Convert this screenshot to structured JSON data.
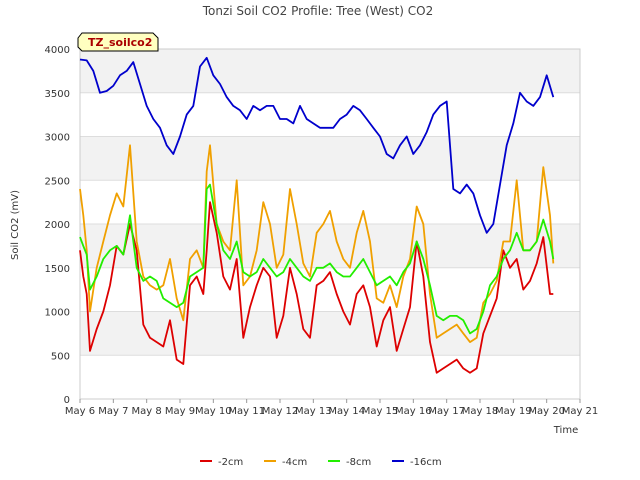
{
  "chart_data": {
    "type": "line",
    "title": "Tonzi Soil CO2 Profile: Tree (West) CO2",
    "xlabel": "Time",
    "ylabel": "Soil CO2 (mV)",
    "ylim": [
      0,
      4000
    ],
    "yticks": [
      0,
      500,
      1000,
      1500,
      2000,
      2500,
      3000,
      3500,
      4000
    ],
    "xlim": [
      6,
      21
    ],
    "xticks": [
      {
        "x": 6,
        "label": "May 6"
      },
      {
        "x": 7,
        "label": "May 7"
      },
      {
        "x": 8,
        "label": "May 8"
      },
      {
        "x": 9,
        "label": "May 9"
      },
      {
        "x": 10,
        "label": "May 10"
      },
      {
        "x": 11,
        "label": "May 11"
      },
      {
        "x": 12,
        "label": "May 12"
      },
      {
        "x": 13,
        "label": "May 13"
      },
      {
        "x": 14,
        "label": "May 14"
      },
      {
        "x": 15,
        "label": "May 15"
      },
      {
        "x": 16,
        "label": "May 16"
      },
      {
        "x": 17,
        "label": "May 17"
      },
      {
        "x": 18,
        "label": "May 18"
      },
      {
        "x": 19,
        "label": "May 19"
      },
      {
        "x": 20,
        "label": "May 20"
      },
      {
        "x": 21,
        "label": "May 21"
      }
    ],
    "grid": true,
    "badge": "TZ_soilco2",
    "legend_position": "bottom-center",
    "series": [
      {
        "name": "-2cm",
        "color": "#dd0000",
        "x": [
          6.0,
          6.1,
          6.2,
          6.3,
          6.5,
          6.7,
          6.9,
          7.1,
          7.3,
          7.5,
          7.7,
          7.9,
          8.1,
          8.3,
          8.5,
          8.7,
          8.9,
          9.1,
          9.3,
          9.5,
          9.7,
          9.8,
          9.9,
          10.1,
          10.3,
          10.5,
          10.7,
          10.9,
          11.1,
          11.3,
          11.5,
          11.7,
          11.9,
          12.1,
          12.3,
          12.5,
          12.7,
          12.9,
          13.1,
          13.3,
          13.5,
          13.7,
          13.9,
          14.1,
          14.3,
          14.5,
          14.7,
          14.9,
          15.1,
          15.3,
          15.5,
          15.7,
          15.9,
          16.1,
          16.3,
          16.5,
          16.7,
          16.9,
          17.1,
          17.3,
          17.5,
          17.7,
          17.9,
          18.1,
          18.3,
          18.5,
          18.7,
          18.9,
          19.1,
          19.3,
          19.5,
          19.7,
          19.9,
          20.1,
          20.2
        ],
        "values": [
          1700,
          1400,
          1200,
          550,
          800,
          1000,
          1300,
          1750,
          1650,
          2000,
          1700,
          850,
          700,
          650,
          600,
          900,
          450,
          400,
          1300,
          1400,
          1200,
          1700,
          2250,
          1900,
          1400,
          1250,
          1600,
          700,
          1050,
          1300,
          1500,
          1400,
          700,
          950,
          1500,
          1200,
          800,
          700,
          1300,
          1350,
          1450,
          1200,
          1000,
          850,
          1200,
          1300,
          1050,
          600,
          900,
          1050,
          550,
          800,
          1050,
          1800,
          1400,
          650,
          300,
          350,
          400,
          450,
          350,
          300,
          350,
          750,
          950,
          1150,
          1700,
          1500,
          1600,
          1250,
          1350,
          1550,
          1850,
          1200,
          1200
        ]
      },
      {
        "name": "-4cm",
        "color": "#f0a000",
        "x": [
          6.0,
          6.1,
          6.2,
          6.3,
          6.5,
          6.7,
          6.9,
          7.1,
          7.3,
          7.5,
          7.7,
          7.9,
          8.1,
          8.3,
          8.5,
          8.7,
          8.9,
          9.1,
          9.3,
          9.5,
          9.7,
          9.8,
          9.9,
          10.1,
          10.3,
          10.5,
          10.7,
          10.9,
          11.1,
          11.3,
          11.5,
          11.7,
          11.9,
          12.1,
          12.3,
          12.5,
          12.7,
          12.9,
          13.1,
          13.3,
          13.5,
          13.7,
          13.9,
          14.1,
          14.3,
          14.5,
          14.7,
          14.9,
          15.1,
          15.3,
          15.5,
          15.7,
          15.9,
          16.1,
          16.3,
          16.5,
          16.7,
          16.9,
          17.1,
          17.3,
          17.5,
          17.7,
          17.9,
          18.1,
          18.3,
          18.5,
          18.7,
          18.9,
          19.1,
          19.3,
          19.5,
          19.7,
          19.9,
          20.1,
          20.2
        ],
        "values": [
          2400,
          2100,
          1700,
          1000,
          1500,
          1800,
          2100,
          2350,
          2200,
          2900,
          1800,
          1400,
          1300,
          1250,
          1300,
          1600,
          1150,
          900,
          1600,
          1700,
          1500,
          2600,
          2900,
          2000,
          1800,
          1700,
          2500,
          1300,
          1400,
          1700,
          2250,
          2000,
          1500,
          1650,
          2400,
          2000,
          1550,
          1400,
          1900,
          2000,
          2150,
          1800,
          1600,
          1500,
          1900,
          2150,
          1800,
          1150,
          1100,
          1300,
          1050,
          1400,
          1600,
          2200,
          2000,
          1200,
          700,
          750,
          800,
          850,
          750,
          650,
          700,
          1100,
          1200,
          1350,
          1800,
          1800,
          2500,
          1700,
          1700,
          1800,
          2650,
          2100,
          1550
        ]
      },
      {
        "name": "-8cm",
        "color": "#22ee00",
        "x": [
          6.0,
          6.1,
          6.2,
          6.3,
          6.5,
          6.7,
          6.9,
          7.1,
          7.3,
          7.5,
          7.7,
          7.9,
          8.1,
          8.3,
          8.5,
          8.7,
          8.9,
          9.1,
          9.3,
          9.5,
          9.7,
          9.8,
          9.9,
          10.1,
          10.3,
          10.5,
          10.7,
          10.9,
          11.1,
          11.3,
          11.5,
          11.7,
          11.9,
          12.1,
          12.3,
          12.5,
          12.7,
          12.9,
          13.1,
          13.3,
          13.5,
          13.7,
          13.9,
          14.1,
          14.3,
          14.5,
          14.7,
          14.9,
          15.1,
          15.3,
          15.5,
          15.7,
          15.9,
          16.1,
          16.3,
          16.5,
          16.7,
          16.9,
          17.1,
          17.3,
          17.5,
          17.7,
          17.9,
          18.1,
          18.3,
          18.5,
          18.7,
          18.9,
          19.1,
          19.3,
          19.5,
          19.7,
          19.9,
          20.1,
          20.2
        ],
        "values": [
          1850,
          1750,
          1650,
          1250,
          1400,
          1600,
          1700,
          1750,
          1650,
          2100,
          1500,
          1350,
          1400,
          1350,
          1150,
          1100,
          1050,
          1100,
          1400,
          1450,
          1500,
          2400,
          2450,
          2000,
          1700,
          1600,
          1800,
          1450,
          1400,
          1450,
          1600,
          1500,
          1400,
          1450,
          1600,
          1500,
          1400,
          1350,
          1500,
          1500,
          1550,
          1450,
          1400,
          1400,
          1500,
          1600,
          1450,
          1300,
          1350,
          1400,
          1300,
          1450,
          1550,
          1800,
          1600,
          1300,
          950,
          900,
          950,
          950,
          900,
          750,
          800,
          1000,
          1300,
          1400,
          1600,
          1700,
          1900,
          1700,
          1700,
          1800,
          2050,
          1800,
          1600
        ]
      },
      {
        "name": "-16cm",
        "color": "#0000cc",
        "x": [
          6.0,
          6.2,
          6.4,
          6.6,
          6.8,
          7.0,
          7.2,
          7.4,
          7.6,
          7.8,
          8.0,
          8.2,
          8.4,
          8.6,
          8.8,
          9.0,
          9.2,
          9.4,
          9.6,
          9.8,
          10.0,
          10.2,
          10.4,
          10.6,
          10.8,
          11.0,
          11.2,
          11.4,
          11.6,
          11.8,
          12.0,
          12.2,
          12.4,
          12.6,
          12.8,
          13.0,
          13.2,
          13.4,
          13.6,
          13.8,
          14.0,
          14.2,
          14.4,
          14.6,
          14.8,
          15.0,
          15.2,
          15.4,
          15.6,
          15.8,
          16.0,
          16.2,
          16.4,
          16.6,
          16.8,
          17.0,
          17.2,
          17.4,
          17.6,
          17.8,
          18.0,
          18.2,
          18.4,
          18.6,
          18.8,
          19.0,
          19.2,
          19.4,
          19.6,
          19.8,
          20.0,
          20.2
        ],
        "values": [
          3880,
          3870,
          3750,
          3500,
          3520,
          3580,
          3700,
          3750,
          3850,
          3600,
          3350,
          3200,
          3100,
          2900,
          2800,
          3000,
          3250,
          3350,
          3800,
          3900,
          3700,
          3600,
          3450,
          3350,
          3300,
          3200,
          3350,
          3300,
          3350,
          3350,
          3200,
          3200,
          3150,
          3350,
          3200,
          3150,
          3100,
          3100,
          3100,
          3200,
          3250,
          3350,
          3300,
          3200,
          3100,
          3000,
          2800,
          2750,
          2900,
          3000,
          2800,
          2900,
          3050,
          3250,
          3350,
          3400,
          2400,
          2350,
          2450,
          2350,
          2100,
          1900,
          2000,
          2450,
          2900,
          3150,
          3500,
          3400,
          3350,
          3450,
          3700,
          3450
        ]
      }
    ]
  }
}
